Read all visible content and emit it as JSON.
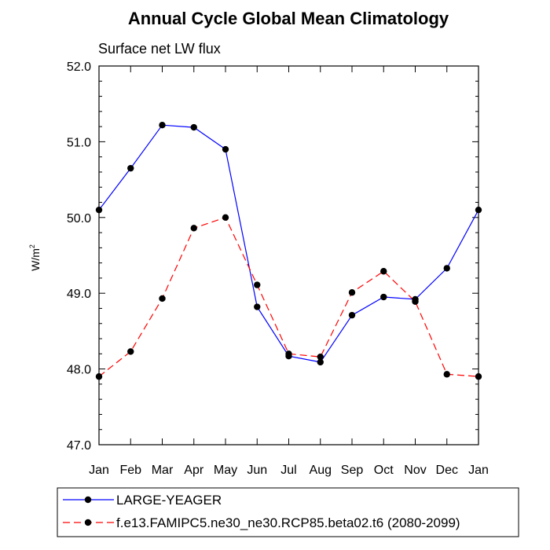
{
  "chart_data": {
    "type": "line",
    "title": "Annual Cycle Global Mean Climatology",
    "subtitle": "Surface net LW flux",
    "ylabel_base": "W/m",
    "ylabel_exp": "2",
    "ylabel": "W/m2",
    "xlabel": "",
    "categories": [
      "Jan",
      "Feb",
      "Mar",
      "Apr",
      "May",
      "Jun",
      "Jul",
      "Aug",
      "Sep",
      "Oct",
      "Nov",
      "Dec",
      "Jan"
    ],
    "ylim": [
      47.0,
      52.0
    ],
    "yticks": [
      "47.0",
      "48.0",
      "49.0",
      "50.0",
      "51.0",
      "52.0"
    ],
    "series": [
      {
        "name": "LARGE-YEAGER",
        "color": "#0000ff",
        "dash": "solid",
        "values": [
          50.1,
          50.65,
          51.22,
          51.19,
          50.9,
          48.82,
          48.17,
          48.09,
          48.71,
          48.95,
          48.92,
          49.33,
          50.1
        ]
      },
      {
        "name": "f.e13.FAMIPC5.ne30_ne30.RCP85.beta02.t6 (2080-2099)",
        "color": "#ff0000",
        "dash": "dashed",
        "values": [
          47.9,
          48.23,
          48.93,
          49.86,
          50.0,
          49.11,
          48.2,
          48.16,
          49.01,
          49.29,
          48.89,
          47.93,
          47.9
        ]
      }
    ]
  }
}
